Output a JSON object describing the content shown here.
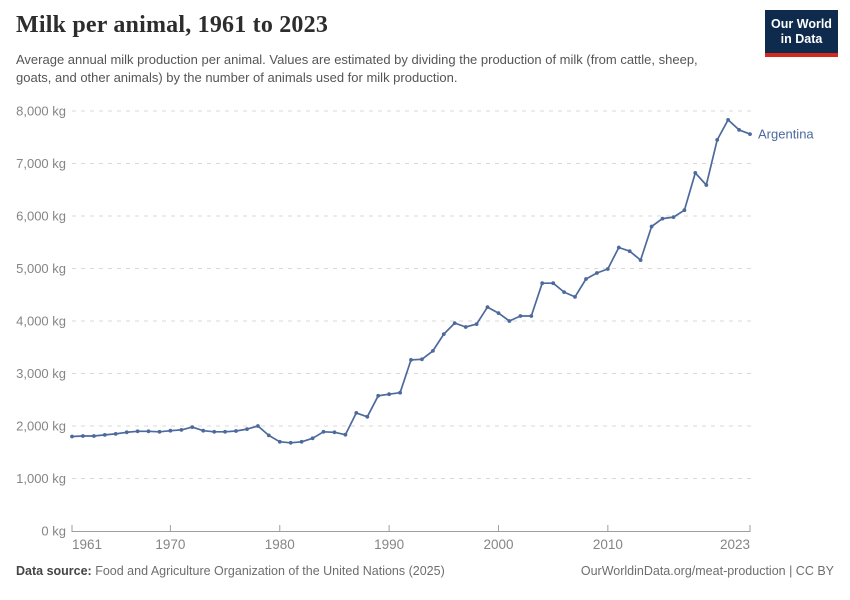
{
  "header": {
    "title": "Milk per animal, 1961 to 2023",
    "subtitle": "Average annual milk production per animal. Values are estimated by dividing the production of milk (from cattle, sheep, goats, and other animals) by the number of animals used for milk production.",
    "logo": {
      "line1": "Our World",
      "line2": "in Data",
      "bg_color": "#0e2a4d",
      "stripe_color": "#d5281f"
    }
  },
  "chart_data": {
    "type": "line",
    "title": "Milk per animal, 1961 to 2023",
    "unit": "kg",
    "x_start": 1961,
    "x_end": 2023,
    "ylim": [
      0,
      8000
    ],
    "grid": "horizontal-dashed",
    "legend_position": "end-of-line-label",
    "series": [
      {
        "name": "Argentina",
        "color": "#4c6a9c",
        "values": [
          1800,
          1810,
          1810,
          1830,
          1850,
          1880,
          1900,
          1900,
          1890,
          1910,
          1925,
          1980,
          1910,
          1890,
          1890,
          1905,
          1940,
          2000,
          1820,
          1700,
          1680,
          1700,
          1765,
          1890,
          1880,
          1835,
          2250,
          2175,
          2575,
          2605,
          2635,
          3260,
          3270,
          3430,
          3750,
          3960,
          3885,
          3940,
          4265,
          4150,
          4000,
          4095,
          4095,
          4720,
          4720,
          4550,
          4460,
          4800,
          4915,
          4990,
          5400,
          5330,
          5160,
          5800,
          5950,
          5980,
          6110,
          6820,
          6590,
          7450,
          7830,
          7640,
          7560
        ]
      }
    ],
    "y_ticks": [
      {
        "value": 0,
        "label": "0 kg"
      },
      {
        "value": 1000,
        "label": "1,000 kg"
      },
      {
        "value": 2000,
        "label": "2,000 kg"
      },
      {
        "value": 3000,
        "label": "3,000 kg"
      },
      {
        "value": 4000,
        "label": "4,000 kg"
      },
      {
        "value": 5000,
        "label": "5,000 kg"
      },
      {
        "value": 6000,
        "label": "6,000 kg"
      },
      {
        "value": 7000,
        "label": "7,000 kg"
      },
      {
        "value": 8000,
        "label": "8,000 kg"
      }
    ],
    "x_ticks": [
      {
        "year": 1961,
        "label": "1961"
      },
      {
        "year": 1970,
        "label": "1970"
      },
      {
        "year": 1980,
        "label": "1980"
      },
      {
        "year": 1990,
        "label": "1990"
      },
      {
        "year": 2000,
        "label": "2000"
      },
      {
        "year": 2010,
        "label": "2010"
      },
      {
        "year": 2023,
        "label": "2023"
      }
    ],
    "colors": {
      "grid": "#d9d9d9",
      "axis": "#9e9e9e",
      "tick_text": "#858585"
    }
  },
  "footer": {
    "datasource_label": "Data source:",
    "datasource_text": "Food and Agriculture Organization of the United Nations (2025)",
    "credit_right": "OurWorldinData.org/meat-production | CC BY"
  }
}
